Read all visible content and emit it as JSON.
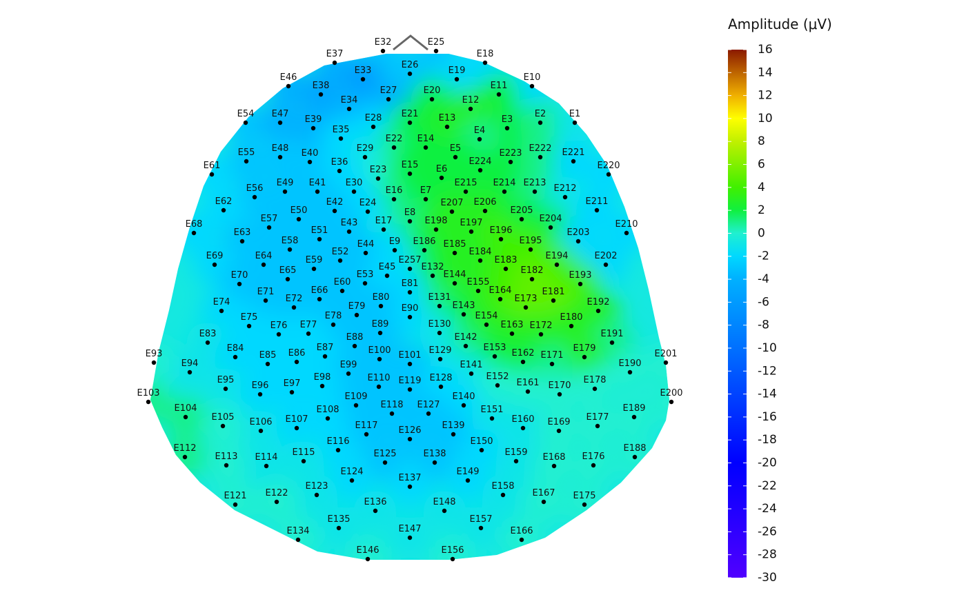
{
  "chart_data": {
    "type": "topo",
    "title": "Amplitude (μV)",
    "xlim": [
      0,
      1400
    ],
    "ylim": [
      866,
      0
    ],
    "electrodes": [
      "E32",
      "E25",
      "E37",
      "E18",
      "E33",
      "E26",
      "E19",
      "E46",
      "E10",
      "E38",
      "E27",
      "E20",
      "E11",
      "E34",
      "E12",
      "E54",
      "E47",
      "E39",
      "E28",
      "E21",
      "E13",
      "E3",
      "E2",
      "E1",
      "E35",
      "E4",
      "E22",
      "E14",
      "E5",
      "E55",
      "E48",
      "E40",
      "E29",
      "E223",
      "E222",
      "E221",
      "E36",
      "E23",
      "E15",
      "E6",
      "E224",
      "E61",
      "E220",
      "E56",
      "E49",
      "E41",
      "E30",
      "E16",
      "E7",
      "E215",
      "E214",
      "E213",
      "E212",
      "E62",
      "E42",
      "E24",
      "E207",
      "E206",
      "E211",
      "E57",
      "E50",
      "E43",
      "E17",
      "E8",
      "E198",
      "E197",
      "E205",
      "E204",
      "E68",
      "E210",
      "E63",
      "E51",
      "E44",
      "E9",
      "E186",
      "E185",
      "E196",
      "E203",
      "E58",
      "E195",
      "E69",
      "E64",
      "E52",
      "E257",
      "E184",
      "E194",
      "E202",
      "E70",
      "E65",
      "E59",
      "E53",
      "E45",
      "E132",
      "E183",
      "E144",
      "E182",
      "E193",
      "E71",
      "E60",
      "E66",
      "E81",
      "E155",
      "E164",
      "E181",
      "E72",
      "E80",
      "E131",
      "E173",
      "E74",
      "E192",
      "E79",
      "E143",
      "E90",
      "E78",
      "E154",
      "E75",
      "E180",
      "E76",
      "E77",
      "E89",
      "E130",
      "E163",
      "E172",
      "E83",
      "E191",
      "E88",
      "E142",
      "E84",
      "E87",
      "E100",
      "E129",
      "E153",
      "E179",
      "E93",
      "E201",
      "E85",
      "E86",
      "E101",
      "E162",
      "E171",
      "E94",
      "E190",
      "E99",
      "E141",
      "E110",
      "E119",
      "E128",
      "E152",
      "E95",
      "E178",
      "E96",
      "E97",
      "E98",
      "E161",
      "E170",
      "E103",
      "E200",
      "E109",
      "E140",
      "E118",
      "E127",
      "E104",
      "E189",
      "E108",
      "E151",
      "E105",
      "E177",
      "E106",
      "E107",
      "E160",
      "E169",
      "E117",
      "E126",
      "E139",
      "E116",
      "E150",
      "E112",
      "E188",
      "E113",
      "E114",
      "E115",
      "E125",
      "E138",
      "E159",
      "E168",
      "E176",
      "E124",
      "E149",
      "E137",
      "E123",
      "E158",
      "E121",
      "E122",
      "E167",
      "E175",
      "E136",
      "E148",
      "E135",
      "E157",
      "E147",
      "E134",
      "E166",
      "E146",
      "E156"
    ],
    "x": [
      555,
      632,
      485,
      703,
      526,
      594,
      662,
      418,
      771,
      465,
      563,
      626,
      723,
      506,
      682,
      356,
      406,
      454,
      541,
      594,
      648,
      735,
      783,
      833,
      494,
      695,
      571,
      617,
      660,
      357,
      406,
      449,
      529,
      740,
      783,
      831,
      492,
      548,
      594,
      640,
      696,
      307,
      882,
      369,
      413,
      460,
      513,
      571,
      617,
      675,
      731,
      775,
      819,
      324,
      485,
      533,
      655,
      703,
      865,
      390,
      433,
      506,
      556,
      594,
      632,
      683,
      756,
      798,
      281,
      908,
      351,
      463,
      530,
      572,
      615,
      659,
      726,
      838,
      420,
      769,
      311,
      382,
      493,
      594,
      696,
      807,
      878,
      347,
      417,
      455,
      529,
      561,
      627,
      733,
      659,
      771,
      841,
      385,
      496,
      463,
      594,
      693,
      725,
      802,
      426,
      552,
      637,
      762,
      321,
      867,
      517,
      672,
      594,
      483,
      705,
      361,
      828,
      404,
      447,
      551,
      637,
      742,
      784,
      301,
      887,
      514,
      675,
      341,
      471,
      550,
      638,
      717,
      847,
      223,
      965,
      388,
      430,
      594,
      758,
      800,
      275,
      913,
      505,
      683,
      549,
      594,
      639,
      721,
      327,
      862,
      377,
      423,
      467,
      765,
      811,
      215,
      973,
      516,
      672,
      568,
      621,
      269,
      919,
      475,
      713,
      323,
      866,
      378,
      430,
      758,
      810,
      531,
      594,
      657,
      490,
      698,
      268,
      920,
      328,
      386,
      440,
      558,
      630,
      748,
      803,
      860,
      510,
      678,
      594,
      459,
      729,
      341,
      401,
      788,
      847,
      544,
      644,
      491,
      697,
      594,
      432,
      756,
      533,
      656
    ],
    "y": [
      74,
      74,
      91,
      91,
      115,
      107,
      115,
      125,
      125,
      137,
      144,
      144,
      137,
      158,
      158,
      178,
      178,
      186,
      184,
      178,
      184,
      186,
      178,
      178,
      201,
      202,
      214,
      214,
      228,
      234,
      228,
      235,
      228,
      235,
      228,
      234,
      248,
      259,
      252,
      258,
      247,
      253,
      253,
      286,
      278,
      278,
      278,
      289,
      289,
      278,
      278,
      278,
      286,
      305,
      306,
      307,
      307,
      306,
      305,
      330,
      318,
      336,
      333,
      321,
      333,
      336,
      318,
      330,
      338,
      338,
      350,
      347,
      367,
      363,
      363,
      367,
      347,
      350,
      362,
      362,
      384,
      384,
      378,
      390,
      378,
      384,
      384,
      412,
      405,
      390,
      411,
      400,
      400,
      390,
      411,
      405,
      412,
      436,
      422,
      434,
      424,
      422,
      434,
      436,
      446,
      444,
      444,
      446,
      451,
      451,
      457,
      456,
      460,
      471,
      471,
      473,
      473,
      485,
      484,
      483,
      483,
      484,
      485,
      497,
      497,
      502,
      502,
      518,
      517,
      521,
      521,
      517,
      518,
      526,
      526,
      528,
      525,
      528,
      525,
      528,
      540,
      540,
      542,
      542,
      561,
      565,
      561,
      559,
      564,
      564,
      572,
      569,
      560,
      568,
      572,
      583,
      583,
      588,
      588,
      600,
      600,
      605,
      605,
      607,
      607,
      618,
      618,
      625,
      621,
      621,
      625,
      630,
      637,
      630,
      653,
      653,
      663,
      663,
      675,
      676,
      669,
      671,
      671,
      669,
      676,
      675,
      697,
      697,
      706,
      718,
      718,
      732,
      728,
      728,
      732,
      741,
      741,
      766,
      766,
      780,
      783,
      783,
      811,
      811
    ],
    "values": [
      -3,
      -3,
      -4,
      -2,
      -6,
      -3,
      -2,
      -4,
      -2,
      -5,
      -4,
      2,
      2,
      -4,
      3,
      -3,
      -4,
      -4,
      -2,
      2,
      3,
      2,
      1,
      -1,
      -2,
      1,
      1,
      2,
      2,
      -3,
      -3,
      -3,
      -1,
      2,
      1,
      -2,
      -2,
      0,
      2,
      2,
      2,
      -2,
      -2,
      -3,
      -3,
      -3,
      -2,
      1,
      2,
      2,
      2,
      1,
      -1,
      -2,
      -3,
      -2,
      3,
      3,
      -2,
      -3,
      -3,
      -3,
      -1,
      1,
      3,
      3,
      2,
      2,
      -2,
      -2,
      -3,
      -3,
      -3,
      -2,
      2,
      3,
      4,
      -2,
      -3,
      4,
      -2,
      -3,
      -3,
      -1,
      3,
      4,
      -2,
      -3,
      -3,
      -3,
      -3,
      -2,
      2,
      4,
      3,
      5,
      4,
      -3,
      -3,
      -3,
      -2,
      3,
      4,
      5,
      -3,
      -3,
      1,
      5,
      -2,
      3,
      -3,
      2,
      -2,
      -3,
      3,
      -2,
      3,
      -2,
      -2,
      -3,
      -1,
      3,
      3,
      -1,
      1,
      -3,
      1,
      -2,
      -2,
      -3,
      -1,
      2,
      3,
      0,
      0,
      -2,
      -2,
      -3,
      2,
      1,
      -1,
      0,
      -3,
      -1,
      -3,
      -3,
      -2,
      0,
      -1,
      0,
      -2,
      -2,
      -2,
      0,
      0,
      1,
      0,
      -3,
      -2,
      -3,
      -3,
      1,
      0,
      -2,
      -1,
      0,
      0,
      -1,
      -2,
      -1,
      0,
      -3,
      -3,
      -3,
      -2,
      -2,
      1,
      0,
      0,
      -1,
      -1,
      -3,
      -3,
      -1,
      0,
      0,
      -2,
      -2,
      -2,
      -1,
      -1,
      0,
      0,
      0,
      0,
      -1,
      -1,
      -1,
      -1,
      -1,
      0,
      0,
      0,
      0
    ],
    "colorbar_lim": [
      -30,
      16
    ],
    "colorbar_ticks": [
      -30,
      -28,
      -26,
      -24,
      -22,
      -20,
      -18,
      -16,
      -14,
      -12,
      -10,
      -8,
      -6,
      -4,
      -2,
      0,
      2,
      4,
      6,
      8,
      10,
      12,
      14,
      16
    ],
    "colorscale": [
      [
        -30,
        "#5000ff"
      ],
      [
        -20,
        "#0000ff"
      ],
      [
        -10,
        "#0070ff"
      ],
      [
        -4,
        "#00b0ff"
      ],
      [
        -2,
        "#00d8ff"
      ],
      [
        0,
        "#20f0d0"
      ],
      [
        2,
        "#10f040"
      ],
      [
        4,
        "#40f000"
      ],
      [
        8,
        "#c0f000"
      ],
      [
        10,
        "#ffff00"
      ],
      [
        12,
        "#f0b000"
      ],
      [
        16,
        "#8b1a00"
      ]
    ]
  }
}
